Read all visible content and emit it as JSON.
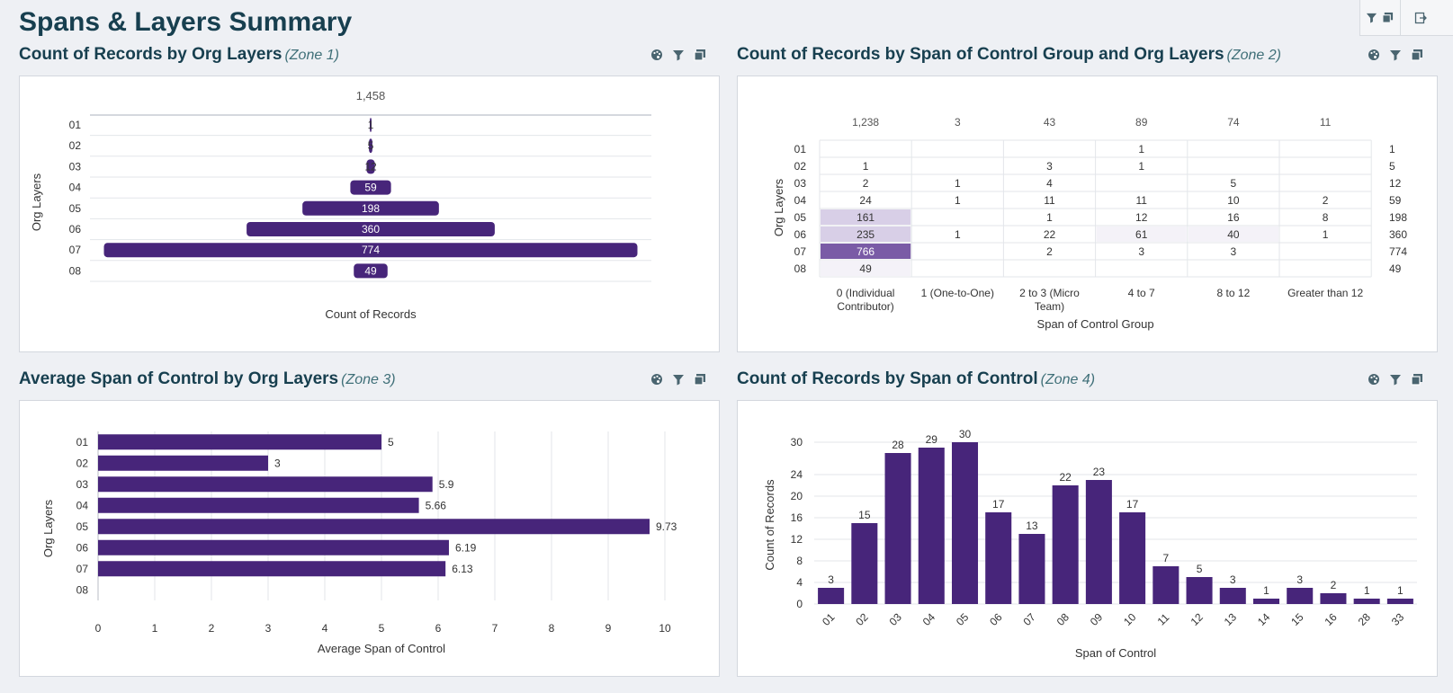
{
  "page": {
    "title": "Spans & Layers Summary"
  },
  "colors": {
    "bar": "#47257a",
    "title": "#173f4f",
    "heat_low": "#f4f2f8",
    "heat_mid": "#d8cfe7",
    "heat_high": "#7a5ba6"
  },
  "toolbar": {
    "icons": [
      "filter-icon",
      "comment-icon",
      "exit-icon"
    ]
  },
  "zones": [
    {
      "title": "Count of Records by Org Layers",
      "tag": "(Zone 1)"
    },
    {
      "title": "Count of Records by Span of Control Group and Org Layers",
      "tag": "(Zone 2)"
    },
    {
      "title": "Average Span of Control by Org Layers",
      "tag": "(Zone 3)"
    },
    {
      "title": "Count of Records by Span of Control",
      "tag": "(Zone 4)"
    }
  ],
  "chart_data": [
    {
      "type": "bar",
      "orientation": "horizontal-centered",
      "title": "Count of Records by Org Layers",
      "categories": [
        "01",
        "02",
        "03",
        "04",
        "05",
        "06",
        "07",
        "08"
      ],
      "values": [
        1,
        5,
        12,
        59,
        198,
        360,
        774,
        49
      ],
      "total_label": "1,458",
      "xlabel": "Count of Records",
      "ylabel": "Org Layers"
    },
    {
      "type": "heatmap",
      "title": "Count of Records by Span of Control Group and Org Layers",
      "columns": [
        "0 (Individual Contributor)",
        "1 (One-to-One)",
        "2 to 3 (Micro Team)",
        "4 to 7",
        "8 to 12",
        "Greater than 12"
      ],
      "column_totals": [
        "1,238",
        "3",
        "43",
        "89",
        "74",
        "11"
      ],
      "rows": [
        "01",
        "02",
        "03",
        "04",
        "05",
        "06",
        "07",
        "08"
      ],
      "row_totals": [
        "1",
        "5",
        "12",
        "59",
        "198",
        "360",
        "774",
        "49"
      ],
      "values": [
        [
          null,
          null,
          null,
          1,
          null,
          null
        ],
        [
          1,
          null,
          3,
          1,
          null,
          null
        ],
        [
          2,
          1,
          4,
          null,
          5,
          null
        ],
        [
          24,
          1,
          11,
          11,
          10,
          2
        ],
        [
          161,
          null,
          1,
          12,
          16,
          8
        ],
        [
          235,
          1,
          22,
          61,
          40,
          1
        ],
        [
          766,
          null,
          2,
          3,
          3,
          null
        ],
        [
          49,
          null,
          null,
          null,
          null,
          null
        ]
      ],
      "xlabel": "Span of Control Group",
      "ylabel": "Org Layers"
    },
    {
      "type": "bar",
      "orientation": "horizontal",
      "title": "Average Span of Control by Org Layers",
      "categories": [
        "01",
        "02",
        "03",
        "04",
        "05",
        "06",
        "07",
        "08"
      ],
      "values": [
        5,
        3,
        5.9,
        5.66,
        9.73,
        6.19,
        6.13,
        null
      ],
      "value_labels": [
        "5",
        "3",
        "5.9",
        "5.66",
        "9.73",
        "6.19",
        "6.13",
        ""
      ],
      "xticks": [
        "0",
        "1",
        "2",
        "3",
        "4",
        "5",
        "6",
        "7",
        "8",
        "9",
        "10"
      ],
      "xlim": [
        0,
        10
      ],
      "xlabel": "Average Span of Control",
      "ylabel": "Org Layers"
    },
    {
      "type": "bar",
      "orientation": "vertical",
      "title": "Count of Records by Span of Control",
      "categories": [
        "01",
        "02",
        "03",
        "04",
        "05",
        "06",
        "07",
        "08",
        "09",
        "10",
        "11",
        "12",
        "13",
        "14",
        "15",
        "16",
        "28",
        "33"
      ],
      "values": [
        3,
        15,
        28,
        29,
        30,
        17,
        13,
        22,
        23,
        17,
        7,
        5,
        3,
        1,
        3,
        2,
        1,
        1
      ],
      "yticks": [
        0,
        4,
        8,
        12,
        16,
        20,
        24,
        30
      ],
      "ylim": [
        0,
        30
      ],
      "xlabel": "Span of Control",
      "ylabel": "Count of Records"
    }
  ]
}
